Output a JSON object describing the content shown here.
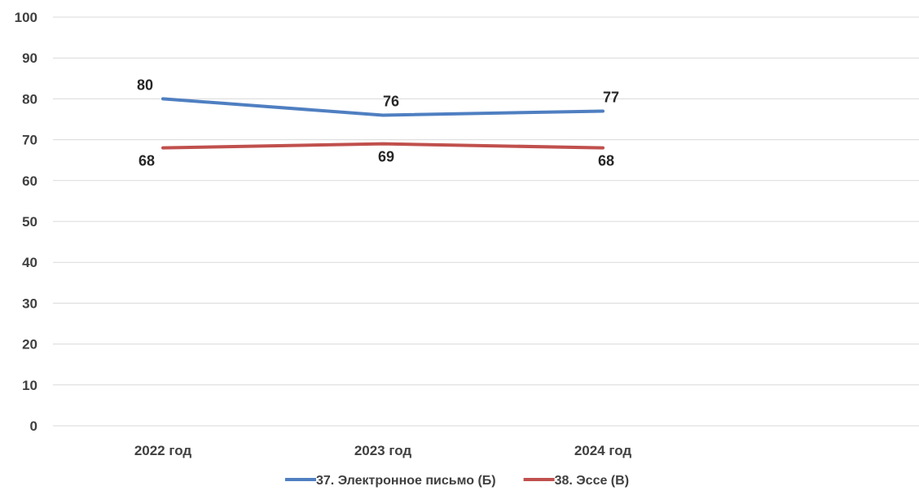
{
  "chart_data": {
    "type": "line",
    "categories": [
      "2022 год",
      "2023 год",
      "2024 год"
    ],
    "ylim": [
      0,
      100
    ],
    "yticks": [
      0,
      10,
      20,
      30,
      40,
      50,
      60,
      70,
      80,
      90,
      100
    ],
    "grid": true,
    "legend_position": "bottom",
    "series": [
      {
        "name": "37. Электронное письмо (Б)",
        "values": [
          80,
          76,
          77
        ],
        "color": "#4f7fc1",
        "label_placement": "above"
      },
      {
        "name": "38. Эссе (В)",
        "values": [
          68,
          69,
          68
        ],
        "color": "#c0504d",
        "label_placement": "below"
      }
    ]
  }
}
